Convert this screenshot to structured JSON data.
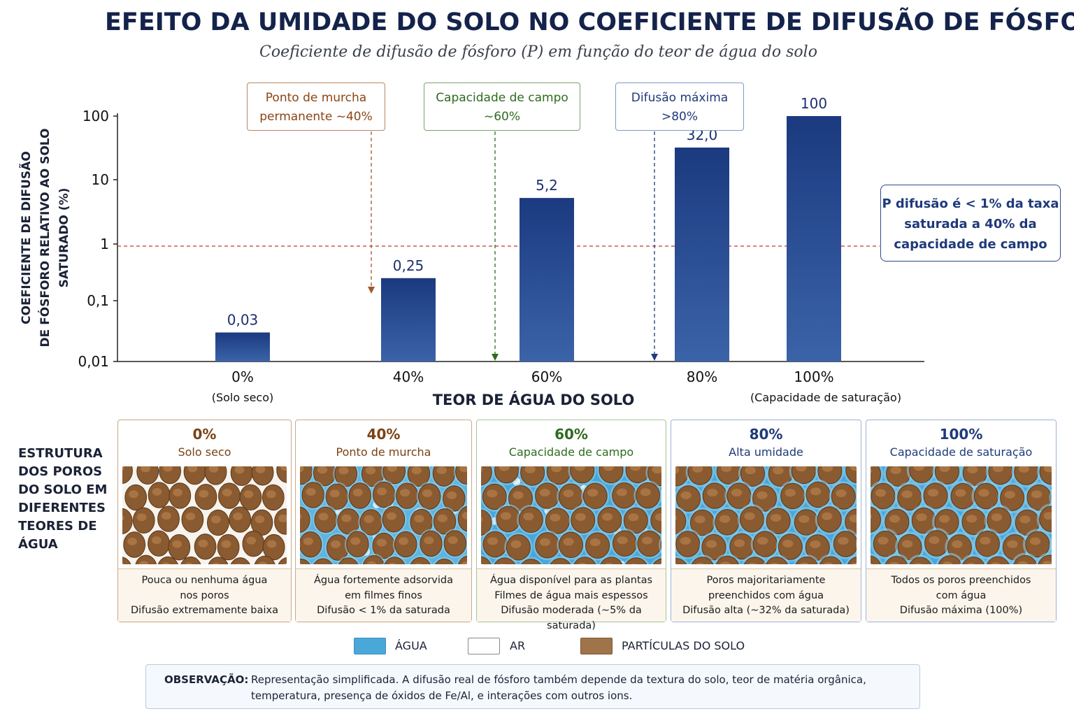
{
  "title": "EFEITO DA UMIDADE DO SOLO NO COEFICIENTE DE DIFUSÃO DE FÓSFORO",
  "subtitle": "Coeficiente de difusão de fósforo (P) em função do teor de água do solo",
  "chart_data": {
    "type": "bar",
    "ylabel_lines": [
      "COEFICIENTE DE DIFUSÃO",
      "DE FÓSFORO RELATIVO AO SOLO",
      "SATURADO (%)"
    ],
    "xlabel": "TEOR DE ÁGUA DO SOLO",
    "yscale": "log",
    "ylim": [
      0.01,
      100
    ],
    "yticks": [
      {
        "value": 100,
        "label": "100"
      },
      {
        "value": 10,
        "label": "10"
      },
      {
        "value": 1,
        "label": "1"
      },
      {
        "value": 0.1,
        "label": "0,1"
      },
      {
        "value": 0.01,
        "label": "0,01"
      }
    ],
    "categories": [
      "0%",
      "40%",
      "60%",
      "80%",
      "100%"
    ],
    "category_notes": [
      "(Solo seco)",
      "",
      "",
      "",
      "(Capacidade de saturação)"
    ],
    "values": [
      0.03,
      0.25,
      5.2,
      32.0,
      100
    ],
    "value_labels": [
      "0,03",
      "0,25",
      "5,2",
      "32,0",
      "100"
    ],
    "reference_line": {
      "value": 1,
      "style": "dashed",
      "color": "#c0392b"
    },
    "grid": false,
    "annotations": [
      {
        "lines": [
          "Ponto de murcha",
          "permanente ~40%"
        ],
        "color": "#8b4513"
      },
      {
        "lines": [
          "Capacidade de campo",
          "~60%"
        ],
        "color": "#2e6b1f"
      },
      {
        "lines": [
          "Difusão máxima",
          ">80%"
        ],
        "color": "#1f3a7a"
      },
      {
        "lines": [
          "P difusão é < 1% da taxa",
          "saturada a 40% da",
          "capacidade de campo"
        ],
        "color": "#1f3a7a"
      }
    ]
  },
  "pore_section": {
    "label_lines": [
      "ESTRUTURA",
      "DOS POROS",
      "DO SOLO EM",
      "DIFERENTES",
      "TEORES DE",
      "ÁGUA"
    ],
    "cards": [
      {
        "pct": "0%",
        "name": "Solo seco",
        "color": "#7a4216",
        "water": 0,
        "desc": [
          "Pouca ou nenhuma água",
          "nos poros",
          "Difusão extremamente baixa"
        ]
      },
      {
        "pct": "40%",
        "name": "Ponto de murcha",
        "color": "#7a4216",
        "water": 0.4,
        "desc": [
          "Água fortemente adsorvida",
          "em filmes finos",
          "Difusão < 1% da saturada"
        ]
      },
      {
        "pct": "60%",
        "name": "Capacidade de campo",
        "color": "#2e6b1f",
        "water": 0.6,
        "desc": [
          "Água disponível para as plantas",
          "Filmes de água mais espessos",
          "Difusão moderada (~5% da saturada)"
        ]
      },
      {
        "pct": "80%",
        "name": "Alta umidade",
        "color": "#1f3a7a",
        "water": 0.8,
        "desc": [
          "Poros majoritariamente",
          "preenchidos com água",
          "Difusão alta (~32% da saturada)"
        ]
      },
      {
        "pct": "100%",
        "name": "Capacidade de saturação",
        "color": "#1f3a7a",
        "water": 1.0,
        "desc": [
          "Todos os poros preenchidos",
          "com água",
          "Difusão máxima (100%)"
        ]
      }
    ]
  },
  "legend": [
    {
      "label": "ÁGUA",
      "color": "#4aa8d8"
    },
    {
      "label": "AR",
      "color": "#ffffff"
    },
    {
      "label": "PARTÍCULAS DO SOLO",
      "color": "#a0744a"
    }
  ],
  "note": {
    "label": "OBSERVAÇÃO:",
    "lines": [
      "Representação simplificada. A difusão real de fósforo também depende da textura do solo, teor de matéria orgânica,",
      "temperatura, presença de óxidos de Fe/Al, e interações com outros ions."
    ]
  }
}
